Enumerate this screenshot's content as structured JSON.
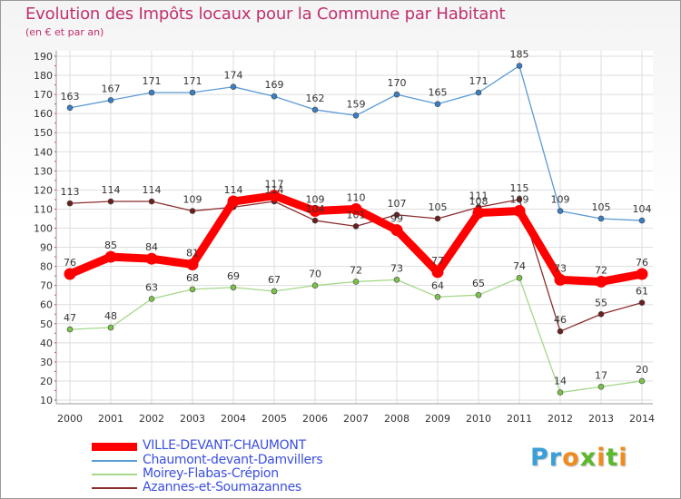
{
  "title": "Evolution des Impôts locaux pour la Commune par Habitant",
  "subtitle": "(en € et par an)",
  "logo": {
    "parts": [
      "P",
      "r",
      "o",
      "x",
      "i",
      "t",
      "i"
    ],
    "colors": [
      "#3a9fd8",
      "#3a9fd8",
      "#f08c1e",
      "#5cb82d",
      "#f08c1e",
      "#5cb82d",
      "#f08c1e"
    ]
  },
  "chart_data": {
    "type": "line",
    "title": "Evolution des Impôts locaux pour la Commune par Habitant",
    "subtitle": "(en € et par an)",
    "x": [
      "2000",
      "2001",
      "2002",
      "2003",
      "2004",
      "2005",
      "2006",
      "2007",
      "2008",
      "2009",
      "2010",
      "2011",
      "2012",
      "2013",
      "2014"
    ],
    "yticks": [
      10,
      20,
      30,
      40,
      50,
      60,
      70,
      80,
      90,
      100,
      110,
      120,
      130,
      140,
      150,
      160,
      170,
      180,
      190
    ],
    "ylim": [
      10,
      190
    ],
    "grid": true,
    "legend_position": "bottom-left",
    "series": [
      {
        "name": "Chaumont-devant-Damvillers",
        "color": "#5b9bd5",
        "marker": "#3a7fc4",
        "values": [
          163,
          167,
          171,
          171,
          174,
          169,
          162,
          159,
          170,
          165,
          171,
          185,
          109,
          105,
          104
        ]
      },
      {
        "name": "Moirey-Flabas-Crépion",
        "color": "#a6d88a",
        "marker": "#7cc24a",
        "values": [
          47,
          48,
          63,
          68,
          69,
          67,
          70,
          72,
          73,
          64,
          65,
          74,
          14,
          17,
          20
        ]
      },
      {
        "name": "Azannes-et-Soumazannes",
        "color": "#8b2e2e",
        "marker": "#6b1f1f",
        "values": [
          113,
          114,
          114,
          109,
          111,
          114,
          104,
          101,
          107,
          105,
          111,
          115,
          46,
          55,
          61
        ]
      },
      {
        "name": "VILLE-DEVANT-CHAUMONT",
        "color": "#ff0000",
        "marker": "#ff0000",
        "values": [
          76,
          85,
          84,
          81,
          114,
          117,
          109,
          110,
          99,
          77,
          108,
          109,
          73,
          72,
          76
        ]
      }
    ],
    "labels": {
      "Chaumont-devant-Damvillers": [
        "163",
        "167",
        "171",
        "171",
        "174",
        "169",
        "162",
        "159",
        "170",
        "165",
        "171",
        "185",
        "109",
        "105",
        "104"
      ],
      "Moirey-Flabas-Crépion": [
        "47",
        "48",
        "63",
        "68",
        "69",
        "67",
        "70",
        "72",
        "73",
        "64",
        "65",
        "74",
        "14",
        "17",
        "20"
      ],
      "Azannes-et-Soumazannes": [
        "113",
        "114",
        "114",
        "109",
        "",
        "114",
        "104",
        "101",
        "107",
        "105",
        "111",
        "115",
        "46",
        "55",
        "61"
      ],
      "VILLE-DEVANT-CHAUMONT": [
        "76",
        "85",
        "84",
        "81",
        "114",
        "117",
        "109",
        "110",
        "99",
        "77",
        "108",
        "109",
        "73",
        "72",
        "76"
      ]
    }
  },
  "legend": [
    {
      "label": "VILLE-DEVANT-CHAUMONT",
      "color": "#ff0000",
      "thick": true
    },
    {
      "label": "Chaumont-devant-Damvillers",
      "color": "#5b9bd5",
      "thick": false
    },
    {
      "label": "Moirey-Flabas-Crépion",
      "color": "#a6d88a",
      "thick": false
    },
    {
      "label": "Azannes-et-Soumazannes",
      "color": "#8b2e2e",
      "thick": false
    }
  ]
}
